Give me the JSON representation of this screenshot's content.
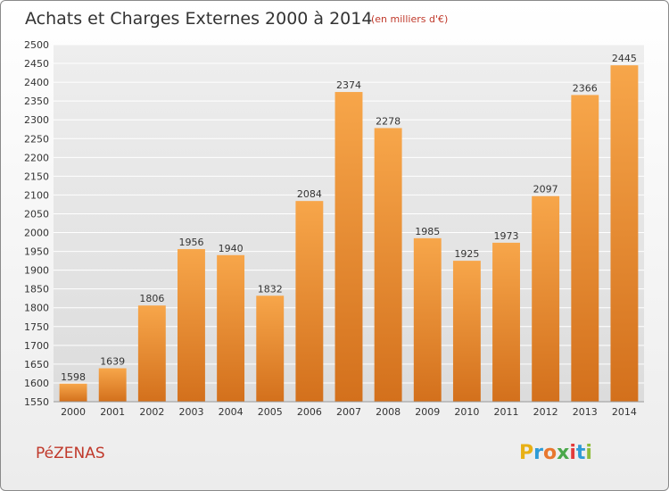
{
  "header": {
    "title": "Achats et Charges Externes 2000 à 2014",
    "unit": "(en milliers d'€)"
  },
  "footer": {
    "city": "PéZENAS",
    "logo": {
      "letters": [
        "P",
        "r",
        "o",
        "x",
        "i",
        "t",
        "i"
      ],
      "colors": [
        "#e8b015",
        "#2e9bd6",
        "#e8772e",
        "#4aa84a",
        "#e23b3b",
        "#2e9bd6",
        "#8fbc3a"
      ]
    }
  },
  "chart_data": {
    "type": "bar",
    "title": "Achats et Charges Externes 2000 à 2014",
    "subtitle": "(en milliers d'€)",
    "xlabel": "",
    "ylabel": "",
    "categories": [
      "2000",
      "2001",
      "2002",
      "2003",
      "2004",
      "2005",
      "2006",
      "2007",
      "2008",
      "2009",
      "2010",
      "2011",
      "2012",
      "2013",
      "2014"
    ],
    "values": [
      1598,
      1639,
      1806,
      1956,
      1940,
      1832,
      2084,
      2374,
      2278,
      1985,
      1925,
      1973,
      2097,
      2366,
      2445
    ],
    "ylim": [
      1550,
      2500
    ],
    "yticks": [
      1550,
      1600,
      1650,
      1700,
      1750,
      1800,
      1850,
      1900,
      1950,
      2000,
      2050,
      2100,
      2150,
      2200,
      2250,
      2300,
      2350,
      2400,
      2450,
      2500
    ],
    "grid": true,
    "bar_color_top": "#f7a64a",
    "bar_color_bottom": "#d3701c",
    "plot_bg": "#e3e3e3",
    "grid_color": "#ffffff"
  }
}
